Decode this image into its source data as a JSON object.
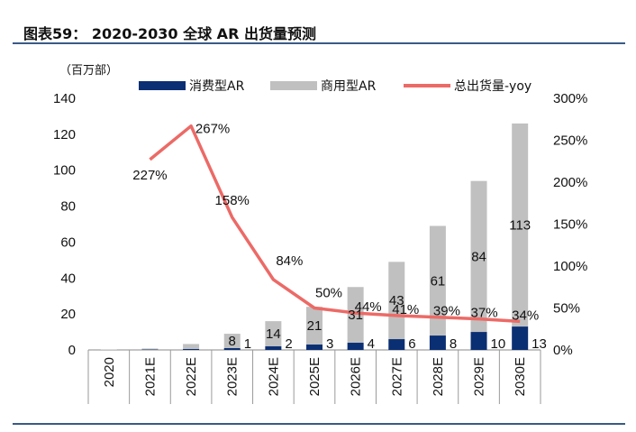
{
  "figure": {
    "title": "图表59：   2020-2030 全球 AR 出货量预测"
  },
  "colors": {
    "consumer": "#0b2f73",
    "commercial": "#c0c0c0",
    "yoy_line": "#ec6a66",
    "rule": "#3a5a86"
  },
  "chart_data": {
    "type": "bar",
    "stacked": true,
    "unit_label": "（百万部）",
    "categories": [
      "2020",
      "2021E",
      "2022E",
      "2023E",
      "2024E",
      "2025E",
      "2026E",
      "2027E",
      "2028E",
      "2029E",
      "2030E"
    ],
    "series": [
      {
        "name": "消费型AR",
        "values": [
          0,
          0.2,
          0.5,
          1,
          2,
          3,
          4,
          6,
          8,
          10,
          13
        ],
        "labels": [
          "",
          "",
          "",
          "1",
          "2",
          "3",
          "4",
          "6",
          "8",
          "10",
          "13"
        ]
      },
      {
        "name": "商用型AR",
        "values": [
          0.2,
          0.6,
          2.8,
          8,
          14,
          21,
          31,
          43,
          61,
          84,
          113
        ],
        "labels": [
          "",
          "",
          "",
          "8",
          "14",
          "21",
          "31",
          "43",
          "61",
          "84",
          "113"
        ]
      }
    ],
    "line_series": {
      "name": "总出货量-yoy",
      "axis": "right",
      "values": [
        null,
        227,
        267,
        158,
        84,
        50,
        44,
        41,
        39,
        37,
        34
      ],
      "labels": [
        "",
        "227%",
        "267%",
        "158%",
        "84%",
        "50%",
        "44%",
        "41%",
        "39%",
        "37%",
        "34%"
      ]
    },
    "y_left": {
      "min": 0,
      "max": 140,
      "step": 20,
      "ticks": [
        "0",
        "20",
        "40",
        "60",
        "80",
        "100",
        "120",
        "140"
      ]
    },
    "y_right": {
      "min": 0,
      "max": 300,
      "step": 50,
      "ticks": [
        "0%",
        "50%",
        "100%",
        "150%",
        "200%",
        "250%",
        "300%"
      ]
    },
    "legend": {
      "position": "top",
      "entries": [
        "消费型AR",
        "商用型AR",
        "总出货量-yoy"
      ]
    },
    "grid": false
  }
}
